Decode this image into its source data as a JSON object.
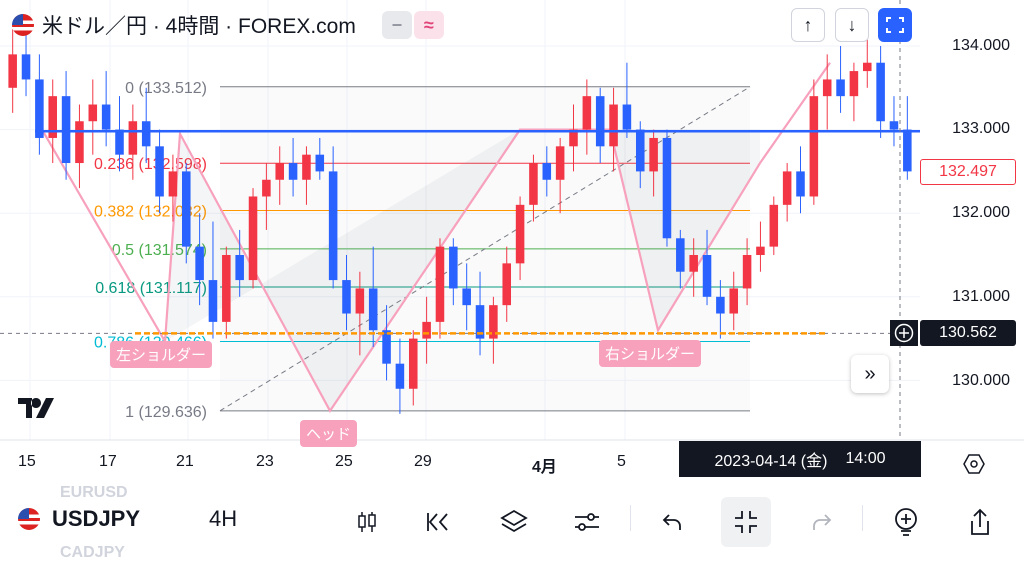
{
  "header": {
    "title": "米ドル／円 · 4時間 · FOREX.com",
    "chip_minus": "−",
    "chip_wave": "≈"
  },
  "nav": {
    "up": "↑",
    "down": "↓",
    "fit": "⛶"
  },
  "fib_levels": [
    {
      "ratio": 0,
      "label": "0 (133.512)",
      "value": 133.512,
      "color": "#787b86"
    },
    {
      "ratio": 0.236,
      "label": "0.236 (132.598)",
      "value": 132.598,
      "color": "#f23645"
    },
    {
      "ratio": 0.382,
      "label": "0.382 (132.032)",
      "value": 132.032,
      "color": "#ff9800"
    },
    {
      "ratio": 0.5,
      "label": "0.5 (131.574)",
      "value": 131.574,
      "color": "#4caf50"
    },
    {
      "ratio": 0.618,
      "label": "0.618 (131.117)",
      "value": 131.117,
      "color": "#089981"
    },
    {
      "ratio": 0.786,
      "label": "0.786 (130.466)",
      "value": 130.466,
      "color": "#00bcd4"
    },
    {
      "ratio": 1,
      "label": "1 (129.636)",
      "value": 129.636,
      "color": "#787b86"
    }
  ],
  "patterns": {
    "left_shoulder": "左ショルダー",
    "head": "ヘッド",
    "right_shoulder": "右ショルダー"
  },
  "price_axis": {
    "ticks": [
      "134.000",
      "133.000",
      "132.000",
      "131.000",
      "130.000"
    ],
    "tick_values": [
      134,
      133,
      132,
      131,
      130
    ],
    "last_price": "132.497",
    "cursor_price": "130.562"
  },
  "time_axis": {
    "labels": [
      "15",
      "17",
      "21",
      "23",
      "25",
      "29",
      "4月",
      "5"
    ],
    "cursor_date": "2023-04-14 (金)",
    "cursor_time": "14:00"
  },
  "chart_data": {
    "type": "candlestick",
    "symbol": "USDJPY",
    "interval": "4H",
    "ylim": [
      129.3,
      134.4
    ],
    "neckline": 132.98,
    "cursor_line": 130.562,
    "ohlc": [
      [
        133.5,
        134.2,
        133.2,
        133.9
      ],
      [
        133.9,
        134.3,
        133.4,
        133.6
      ],
      [
        133.6,
        133.9,
        132.7,
        132.9
      ],
      [
        132.9,
        133.6,
        132.6,
        133.4
      ],
      [
        133.4,
        133.7,
        132.4,
        132.6
      ],
      [
        132.6,
        133.3,
        132.3,
        133.1
      ],
      [
        133.1,
        133.6,
        132.7,
        133.3
      ],
      [
        133.3,
        133.7,
        132.8,
        133.0
      ],
      [
        133.0,
        133.4,
        132.5,
        132.7
      ],
      [
        132.7,
        133.3,
        132.4,
        133.1
      ],
      [
        133.1,
        133.5,
        132.6,
        132.8
      ],
      [
        132.8,
        133.0,
        132.0,
        132.2
      ],
      [
        132.2,
        132.7,
        131.9,
        132.5
      ],
      [
        132.5,
        132.6,
        131.4,
        131.6
      ],
      [
        131.6,
        132.0,
        130.9,
        131.2
      ],
      [
        131.2,
        131.9,
        130.5,
        130.7
      ],
      [
        130.7,
        131.6,
        130.5,
        131.5
      ],
      [
        131.5,
        131.8,
        131.0,
        131.2
      ],
      [
        131.2,
        132.3,
        131.1,
        132.2
      ],
      [
        132.2,
        132.6,
        131.8,
        132.4
      ],
      [
        132.4,
        132.8,
        132.1,
        132.6
      ],
      [
        132.6,
        132.9,
        132.2,
        132.4
      ],
      [
        132.4,
        132.8,
        132.1,
        132.7
      ],
      [
        132.7,
        132.9,
        132.4,
        132.5
      ],
      [
        132.5,
        132.8,
        131.1,
        131.2
      ],
      [
        131.2,
        131.5,
        130.6,
        130.8
      ],
      [
        130.8,
        131.3,
        130.3,
        131.1
      ],
      [
        131.1,
        131.6,
        130.4,
        130.6
      ],
      [
        130.6,
        130.9,
        130.0,
        130.2
      ],
      [
        130.2,
        130.5,
        129.6,
        129.9
      ],
      [
        129.9,
        130.6,
        129.7,
        130.5
      ],
      [
        130.5,
        131.0,
        130.2,
        130.7
      ],
      [
        130.7,
        131.7,
        130.5,
        131.6
      ],
      [
        131.6,
        131.7,
        130.9,
        131.1
      ],
      [
        131.1,
        131.4,
        130.6,
        130.9
      ],
      [
        130.9,
        131.3,
        130.3,
        130.5
      ],
      [
        130.5,
        131.0,
        130.2,
        130.9
      ],
      [
        130.9,
        131.6,
        130.7,
        131.4
      ],
      [
        131.4,
        132.2,
        131.2,
        132.1
      ],
      [
        132.1,
        132.7,
        131.9,
        132.6
      ],
      [
        132.6,
        132.8,
        132.2,
        132.4
      ],
      [
        132.4,
        132.9,
        132.0,
        132.8
      ],
      [
        132.8,
        133.3,
        132.5,
        133.0
      ],
      [
        133.0,
        133.6,
        132.7,
        133.4
      ],
      [
        133.4,
        133.5,
        132.6,
        132.8
      ],
      [
        132.8,
        133.5,
        132.5,
        133.3
      ],
      [
        133.3,
        133.8,
        132.9,
        133.0
      ],
      [
        133.0,
        133.1,
        132.3,
        132.5
      ],
      [
        132.5,
        133.0,
        132.2,
        132.9
      ],
      [
        132.9,
        133.0,
        131.6,
        131.7
      ],
      [
        131.7,
        131.8,
        131.1,
        131.3
      ],
      [
        131.3,
        131.7,
        131.0,
        131.5
      ],
      [
        131.5,
        131.8,
        130.9,
        131.0
      ],
      [
        131.0,
        131.2,
        130.5,
        130.8
      ],
      [
        130.8,
        131.3,
        130.6,
        131.1
      ],
      [
        131.1,
        131.7,
        130.9,
        131.5
      ],
      [
        131.5,
        131.9,
        131.3,
        131.6
      ],
      [
        131.6,
        132.2,
        131.5,
        132.1
      ],
      [
        132.1,
        132.6,
        131.9,
        132.5
      ],
      [
        132.5,
        132.8,
        132.0,
        132.2
      ],
      [
        132.2,
        133.6,
        132.1,
        133.4
      ],
      [
        133.4,
        133.9,
        133.0,
        133.6
      ],
      [
        133.6,
        134.0,
        133.2,
        133.4
      ],
      [
        133.4,
        133.8,
        133.1,
        133.7
      ],
      [
        133.7,
        134.1,
        133.5,
        133.8
      ],
      [
        133.8,
        134.0,
        132.9,
        133.1
      ],
      [
        133.1,
        133.4,
        132.8,
        133.0
      ],
      [
        133.0,
        133.4,
        132.4,
        132.5
      ]
    ]
  },
  "bottom": {
    "symbol": "USDJPY",
    "interval": "4H",
    "ghost_top": "EURUSD",
    "ghost_bottom": "CADJPY"
  },
  "colors": {
    "up": "#f23645",
    "down": "#2962ff",
    "neckline": "#2962ff",
    "pattern": "#f7a1bd",
    "cursor_line": "#ff9800"
  }
}
